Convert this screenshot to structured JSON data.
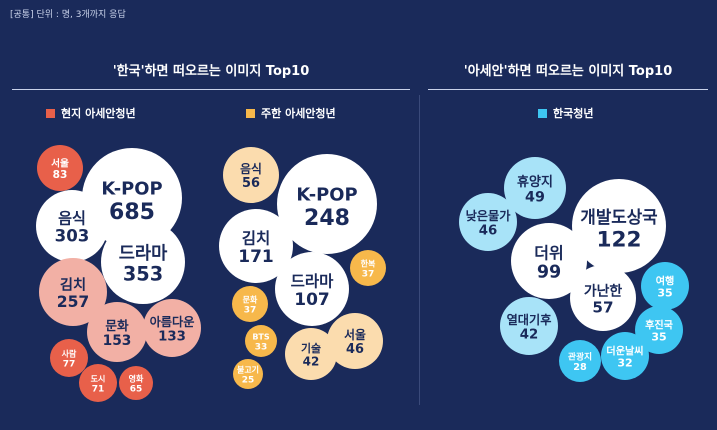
{
  "note": "[공통] 단위 : 명, 3개까지 응답",
  "colors": {
    "background": "#1a2a5a",
    "local_dark": "#e8604a",
    "local_light": "#f2b0a5",
    "korea_resident_dark": "#f7b84b",
    "korea_resident_light": "#fbdcae",
    "korean_youth_dark": "#3ec6f2",
    "korean_youth_light": "#a8e3f8",
    "top": "#ffffff",
    "label_on_dark": "#ffffff",
    "label_on_light": "#1a2a5a"
  },
  "chart_data": [
    {
      "type": "bubble",
      "title": "'한국'하면 떠오르는 이미지 Top10",
      "unit": "명",
      "series": [
        {
          "name": "현지 아세안청년",
          "legend_color": "#e8604a",
          "points": [
            {
              "label": "K-POP",
              "value": 685
            },
            {
              "label": "드라마",
              "value": 353
            },
            {
              "label": "음식",
              "value": 303
            },
            {
              "label": "김치",
              "value": 257
            },
            {
              "label": "문화",
              "value": 153
            },
            {
              "label": "아름다운",
              "value": 133
            },
            {
              "label": "서울",
              "value": 83
            },
            {
              "label": "사람",
              "value": 77
            },
            {
              "label": "도시",
              "value": 71
            },
            {
              "label": "영화",
              "value": 65
            }
          ]
        },
        {
          "name": "주한 아세안청년",
          "legend_color": "#f7b84b",
          "points": [
            {
              "label": "K-POP",
              "value": 248
            },
            {
              "label": "김치",
              "value": 171
            },
            {
              "label": "드라마",
              "value": 107
            },
            {
              "label": "음식",
              "value": 56
            },
            {
              "label": "서울",
              "value": 46
            },
            {
              "label": "기술",
              "value": 42
            },
            {
              "label": "문화",
              "value": 37
            },
            {
              "label": "한복",
              "value": 37
            },
            {
              "label": "BTS",
              "value": 33
            },
            {
              "label": "불고기",
              "value": 25
            }
          ]
        }
      ]
    },
    {
      "type": "bubble",
      "title": "'아세안'하면 떠오르는 이미지 Top10",
      "unit": "명",
      "series": [
        {
          "name": "한국청년",
          "legend_color": "#3ec6f2",
          "points": [
            {
              "label": "개발도상국",
              "value": 122
            },
            {
              "label": "더위",
              "value": 99
            },
            {
              "label": "가난한",
              "value": 57
            },
            {
              "label": "휴양지",
              "value": 49
            },
            {
              "label": "낮은물가",
              "value": 46
            },
            {
              "label": "열대기후",
              "value": 42
            },
            {
              "label": "여행",
              "value": 35
            },
            {
              "label": "후진국",
              "value": 35
            },
            {
              "label": "더운날씨",
              "value": 32
            },
            {
              "label": "관광지",
              "value": 28
            }
          ]
        }
      ]
    }
  ]
}
